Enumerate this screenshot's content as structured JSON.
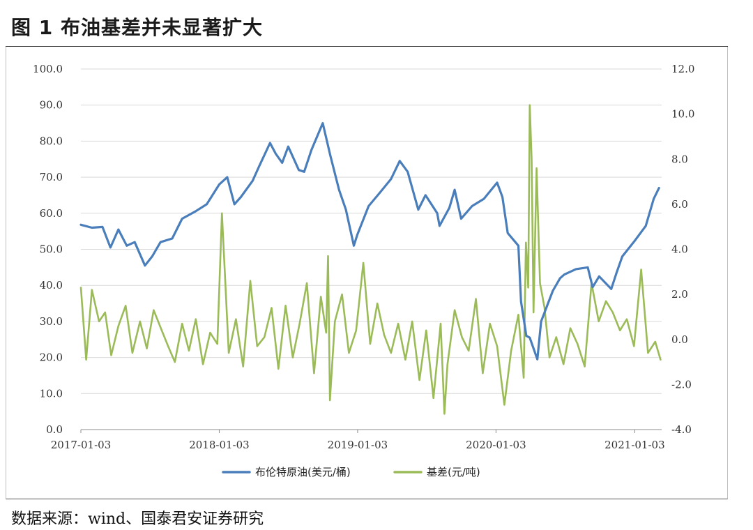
{
  "figure": {
    "title": "图 1 布油基差并未显著扩大",
    "source": "数据来源：wind、国泰君安证券研究"
  },
  "chart_data": {
    "type": "line",
    "title": "",
    "x_tick_labels": [
      "2017-01-03",
      "2018-01-03",
      "2019-01-03",
      "2020-01-03",
      "2021-01-03"
    ],
    "xlim": [
      "2017-01-03",
      "2021-03-15"
    ],
    "y_left": {
      "label": "",
      "ticks": [
        "100.0",
        "90.0",
        "80.0",
        "70.0",
        "60.0",
        "50.0",
        "40.0",
        "30.0",
        "20.0",
        "10.0",
        "0.0"
      ],
      "lim": [
        0,
        100
      ]
    },
    "y_right": {
      "label": "",
      "ticks": [
        "12.0",
        "10.0",
        "8.0",
        "6.0",
        "4.0",
        "2.0",
        "0.0",
        "-2.0",
        "-4.0"
      ],
      "lim": [
        -4,
        12
      ]
    },
    "grid": "horizontal",
    "legend_position": "bottom",
    "series": [
      {
        "name": "布伦特原油(美元/桶)",
        "axis": "left",
        "color": "#4a7ebb",
        "x": [
          "2017-01-03",
          "2017-02-01",
          "2017-03-01",
          "2017-03-22",
          "2017-04-12",
          "2017-05-04",
          "2017-05-25",
          "2017-06-21",
          "2017-07-10",
          "2017-08-01",
          "2017-09-01",
          "2017-09-27",
          "2017-11-01",
          "2017-12-01",
          "2018-01-03",
          "2018-01-24",
          "2018-02-12",
          "2018-03-01",
          "2018-04-01",
          "2018-04-18",
          "2018-05-17",
          "2018-06-01",
          "2018-06-18",
          "2018-07-04",
          "2018-08-01",
          "2018-08-15",
          "2018-09-03",
          "2018-10-03",
          "2018-10-23",
          "2018-11-15",
          "2018-12-03",
          "2018-12-24",
          "2019-01-02",
          "2019-02-01",
          "2019-03-01",
          "2019-04-01",
          "2019-04-24",
          "2019-05-15",
          "2019-06-12",
          "2019-07-01",
          "2019-08-01",
          "2019-08-07",
          "2019-09-02",
          "2019-09-16",
          "2019-10-03",
          "2019-11-01",
          "2019-12-02",
          "2020-01-06",
          "2020-01-20",
          "2020-02-03",
          "2020-03-02",
          "2020-03-09",
          "2020-03-23",
          "2020-04-01",
          "2020-04-21",
          "2020-05-01",
          "2020-06-01",
          "2020-06-20",
          "2020-07-01",
          "2020-08-01",
          "2020-09-01",
          "2020-09-14",
          "2020-10-01",
          "2020-11-02",
          "2020-11-16",
          "2020-12-01",
          "2021-01-04",
          "2021-02-01",
          "2021-02-22",
          "2021-03-08"
        ],
        "values": [
          56.8,
          56.0,
          56.2,
          50.5,
          55.5,
          51.0,
          52.0,
          45.5,
          48.0,
          52.0,
          53.0,
          58.5,
          60.5,
          62.5,
          68.0,
          70.0,
          62.5,
          64.5,
          69.0,
          73.0,
          79.5,
          76.5,
          74.0,
          78.5,
          72.0,
          71.5,
          77.5,
          85.0,
          76.0,
          66.5,
          61.0,
          51.0,
          54.0,
          62.0,
          65.5,
          69.5,
          74.5,
          71.5,
          61.0,
          65.0,
          60.0,
          56.5,
          61.5,
          66.5,
          58.5,
          62.0,
          64.0,
          68.5,
          64.5,
          54.5,
          51.0,
          35.5,
          26.0,
          25.5,
          19.5,
          30.0,
          38.5,
          42.0,
          43.0,
          44.5,
          45.0,
          39.5,
          42.5,
          39.0,
          43.5,
          48.0,
          52.5,
          56.5,
          64.0,
          67.0
        ]
      },
      {
        "name": "基差(元/吨)",
        "axis": "right",
        "color": "#9bbb59",
        "x": [
          "2017-01-03",
          "2017-01-17",
          "2017-02-01",
          "2017-02-20",
          "2017-03-08",
          "2017-03-24",
          "2017-04-12",
          "2017-05-01",
          "2017-05-19",
          "2017-06-08",
          "2017-06-26",
          "2017-07-14",
          "2017-08-02",
          "2017-08-21",
          "2017-09-08",
          "2017-09-27",
          "2017-10-15",
          "2017-11-02",
          "2017-11-21",
          "2017-12-10",
          "2017-12-29",
          "2018-01-10",
          "2018-01-28",
          "2018-02-16",
          "2018-03-07",
          "2018-03-26",
          "2018-04-13",
          "2018-05-02",
          "2018-05-21",
          "2018-06-08",
          "2018-06-27",
          "2018-07-16",
          "2018-08-03",
          "2018-08-22",
          "2018-09-10",
          "2018-09-28",
          "2018-10-12",
          "2018-10-17",
          "2018-10-22",
          "2018-11-04",
          "2018-11-23",
          "2018-12-11",
          "2018-12-30",
          "2019-01-18",
          "2019-02-05",
          "2019-02-24",
          "2019-03-14",
          "2019-04-01",
          "2019-04-20",
          "2019-05-09",
          "2019-05-27",
          "2019-06-15",
          "2019-07-03",
          "2019-07-22",
          "2019-08-10",
          "2019-08-20",
          "2019-08-28",
          "2019-09-16",
          "2019-10-05",
          "2019-10-23",
          "2019-11-11",
          "2019-11-29",
          "2019-12-18",
          "2020-01-06",
          "2020-01-25",
          "2020-02-12",
          "2020-03-02",
          "2020-03-16",
          "2020-03-22",
          "2020-03-28",
          "2020-04-01",
          "2020-04-06",
          "2020-04-11",
          "2020-04-19",
          "2020-04-28",
          "2020-05-10",
          "2020-05-23",
          "2020-06-10",
          "2020-06-29",
          "2020-07-17",
          "2020-08-05",
          "2020-08-24",
          "2020-09-11",
          "2020-09-30",
          "2020-10-19",
          "2020-11-06",
          "2020-11-25",
          "2020-12-13",
          "2021-01-01",
          "2021-01-20",
          "2021-02-07",
          "2021-02-26",
          "2021-03-12"
        ],
        "values": [
          2.3,
          -0.9,
          2.2,
          0.8,
          1.2,
          -0.7,
          0.6,
          1.5,
          -0.6,
          0.8,
          -0.4,
          1.3,
          0.5,
          -0.3,
          -1.0,
          0.7,
          -0.5,
          0.9,
          -1.1,
          0.3,
          -0.2,
          5.6,
          -0.6,
          0.9,
          -1.2,
          2.6,
          -0.3,
          0.1,
          1.4,
          -1.3,
          1.5,
          -0.8,
          0.7,
          2.5,
          -1.5,
          1.9,
          0.3,
          3.7,
          -2.7,
          0.8,
          2.0,
          -0.6,
          0.4,
          3.4,
          -0.2,
          1.6,
          0.2,
          -0.6,
          0.7,
          -0.9,
          0.8,
          -1.8,
          0.4,
          -2.6,
          0.7,
          -3.3,
          -1.1,
          1.3,
          0.1,
          -0.5,
          1.8,
          -1.5,
          0.7,
          -0.3,
          -2.9,
          -0.5,
          1.1,
          -1.7,
          4.3,
          2.3,
          10.4,
          8.0,
          1.2,
          7.6,
          2.5,
          1.4,
          -0.8,
          0.1,
          -1.1,
          0.5,
          -0.2,
          -1.2,
          2.5,
          0.8,
          1.7,
          1.2,
          0.4,
          0.9,
          -0.3,
          3.1,
          -0.6,
          -0.1,
          -0.9
        ]
      }
    ]
  }
}
